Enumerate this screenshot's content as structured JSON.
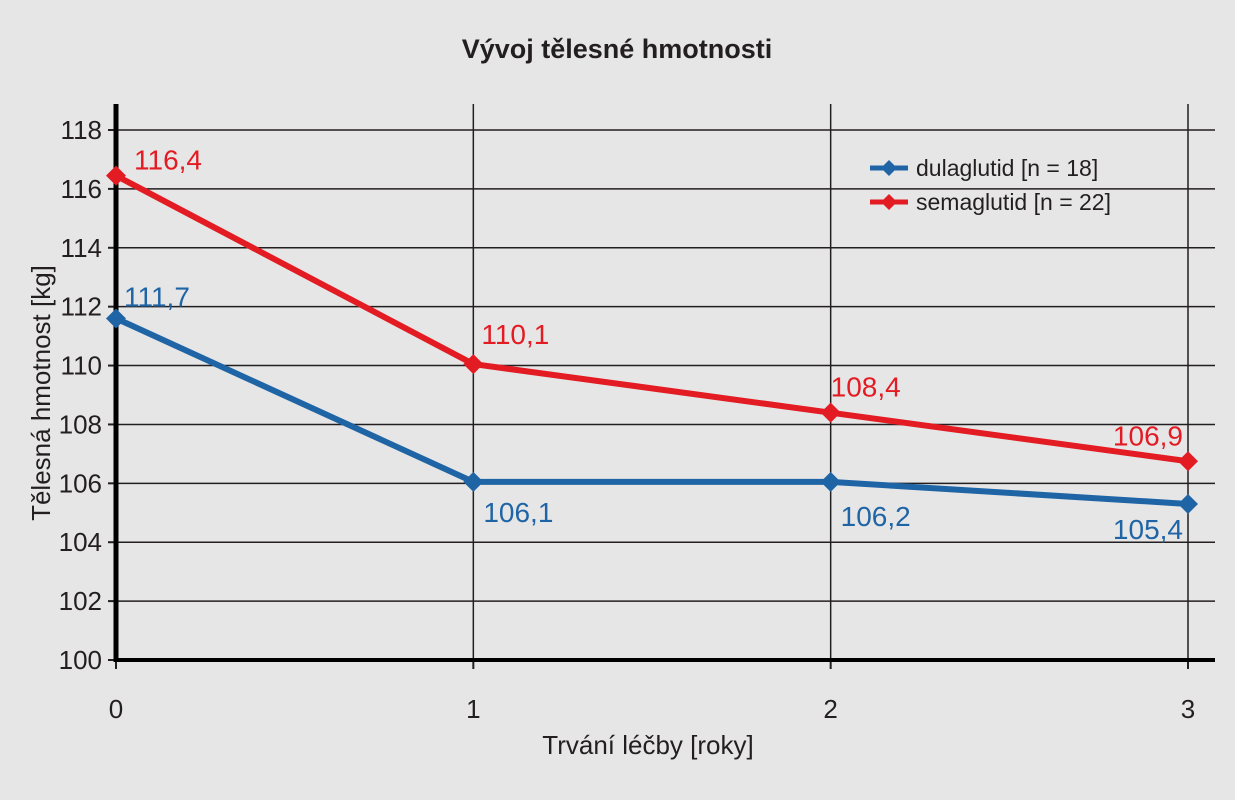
{
  "chart_data": {
    "type": "line",
    "title": "Vývoj tělesné hmotnosti",
    "xlabel": "Trvání léčby [roky]",
    "ylabel": "Tělesná hmotnost [kg]",
    "x": [
      0,
      1,
      2,
      3
    ],
    "x_tick_labels": [
      "0",
      "1",
      "2",
      "3"
    ],
    "ylim": [
      100,
      118
    ],
    "y_ticks": [
      100,
      102,
      104,
      106,
      108,
      110,
      112,
      114,
      116,
      118
    ],
    "grid": true,
    "legend_position": "top-right",
    "series": [
      {
        "name": "dulaglutid [n = 18]",
        "color": "#1f65a6",
        "values": [
          111.7,
          106.1,
          106.2,
          105.4
        ],
        "plotted": [
          111.6,
          106.05,
          106.05,
          105.3
        ],
        "labels": [
          "111,7",
          "106,1",
          "106,2",
          "105,4"
        ]
      },
      {
        "name": "semaglutid [n = 22]",
        "color": "#e31b23",
        "values": [
          116.4,
          110.1,
          108.4,
          106.9
        ],
        "plotted": [
          116.45,
          110.05,
          108.4,
          106.75
        ],
        "labels": [
          "116,4",
          "110,1",
          "108,4",
          "106,9"
        ]
      }
    ]
  }
}
